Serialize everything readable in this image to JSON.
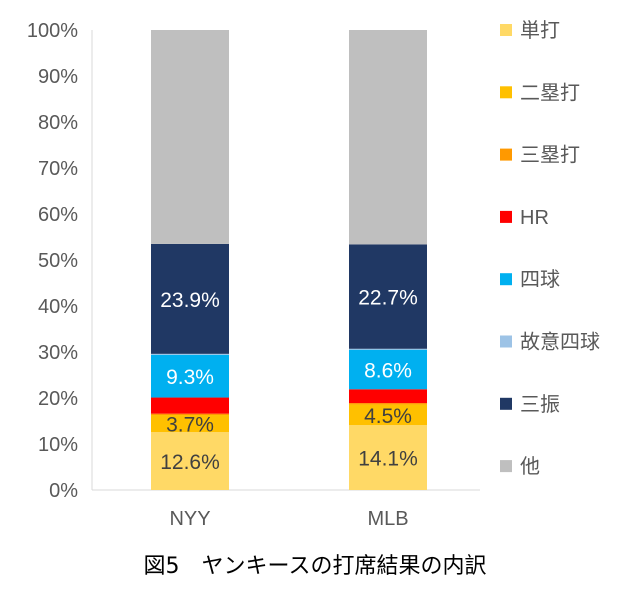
{
  "chart_data": {
    "type": "bar",
    "stacked": true,
    "percent_stacked": true,
    "categories": [
      "NYY",
      "MLB"
    ],
    "ylim": [
      0,
      100
    ],
    "y_ticks": [
      "0%",
      "10%",
      "20%",
      "30%",
      "40%",
      "50%",
      "60%",
      "70%",
      "80%",
      "90%",
      "100%"
    ],
    "grid": false,
    "legend_position": "right",
    "series": [
      {
        "name": "単打",
        "color": "#FFD966",
        "values": [
          12.6,
          14.1
        ],
        "labels": [
          "12.6%",
          "14.1%"
        ],
        "label_color": "#404040"
      },
      {
        "name": "二塁打",
        "color": "#FFC000",
        "values": [
          3.7,
          4.5
        ],
        "labels": [
          "3.7%",
          "4.5%"
        ],
        "label_color": "#404040"
      },
      {
        "name": "三塁打",
        "color": "#FF9900",
        "values": [
          0.3,
          0.3
        ],
        "labels": [
          "",
          ""
        ],
        "label_color": "#404040"
      },
      {
        "name": "HR",
        "color": "#FF0000",
        "values": [
          3.5,
          3.0
        ],
        "labels": [
          "",
          ""
        ],
        "label_color": "#404040"
      },
      {
        "name": "四球",
        "color": "#00B0F0",
        "values": [
          9.3,
          8.6
        ],
        "labels": [
          "9.3%",
          "8.6%"
        ],
        "label_color": "#ffffff"
      },
      {
        "name": "故意四球",
        "color": "#9DC3E6",
        "values": [
          0.2,
          0.2
        ],
        "labels": [
          "",
          ""
        ],
        "label_color": "#ffffff"
      },
      {
        "name": "三振",
        "color": "#203864",
        "values": [
          23.9,
          22.7
        ],
        "labels": [
          "23.9%",
          "22.7%"
        ],
        "label_color": "#ffffff"
      },
      {
        "name": "他",
        "color": "#BFBFBF",
        "values": [
          46.5,
          46.6
        ],
        "labels": [
          "",
          ""
        ],
        "label_color": "#404040"
      }
    ]
  },
  "caption": "図5　ヤンキースの打席結果の内訳"
}
